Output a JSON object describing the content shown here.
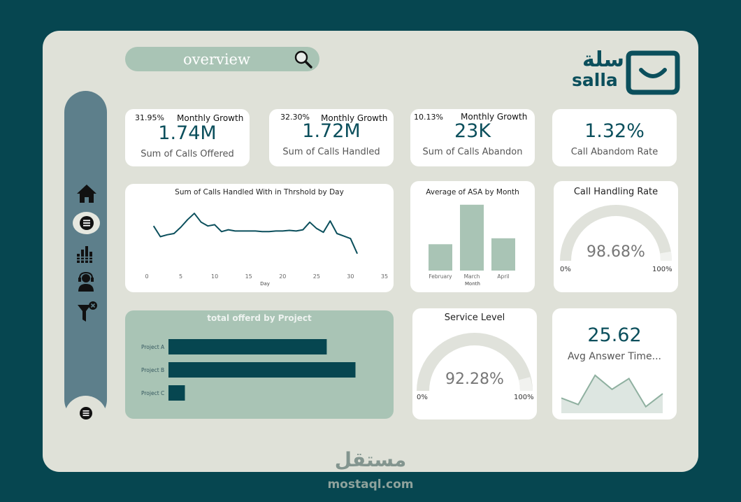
{
  "search": {
    "label": "overview",
    "icon": "search-icon"
  },
  "brand": {
    "arabic": "سلة",
    "latin": "salla",
    "color": "#0b4f5c"
  },
  "sidebar": {
    "items": [
      "home-icon",
      "list-icon",
      "bar-chart-icon",
      "agent-icon",
      "filter-clear-icon"
    ],
    "bottom": "list-icon"
  },
  "kpis": [
    {
      "growth": "31.95%",
      "growth_label": "Monthly Growth",
      "value": "1.74M",
      "label": "Sum of Calls Offered"
    },
    {
      "growth": "32.30%",
      "growth_label": "Monthly Growth",
      "value": "1.72M",
      "label": "Sum of Calls Handled"
    },
    {
      "growth": "10.13%",
      "growth_label": "Monthly Growth",
      "value": "23K",
      "label": "Sum of Calls Abandon"
    },
    {
      "value": "1.32%",
      "label": "Call Abandom Rate"
    }
  ],
  "line_chart": {
    "title": "Sum of Calls Handled With in Thrshold by Day",
    "xlabel": "Day",
    "ticks": [
      "0",
      "5",
      "10",
      "15",
      "20",
      "25",
      "30",
      "35"
    ]
  },
  "asa_chart": {
    "title": "Average of ASA by Month",
    "xlabel": "Month",
    "categories": [
      "February",
      "March",
      "April"
    ]
  },
  "handling_gauge": {
    "title": "Call Handling Rate",
    "value": "98.68%",
    "min": "0%",
    "max": "100%"
  },
  "project_chart": {
    "title": "total offerd by Project",
    "categories": [
      "Project A",
      "Project B",
      "Project C"
    ]
  },
  "service_gauge": {
    "title": "Service Level",
    "value": "92.28%",
    "min": "0%",
    "max": "100%"
  },
  "answer_time": {
    "value": "25.62",
    "label": "Avg Answer Time..."
  },
  "watermark": {
    "arabic": "مستقل",
    "latin": "mostaql.com"
  },
  "chart_data": [
    {
      "type": "line",
      "title": "Sum of Calls Handled With in Thrshold by Day",
      "xlabel": "Day",
      "ylabel": "",
      "xlim": [
        0,
        35
      ],
      "ylim": [
        0,
        100
      ],
      "x": [
        1,
        2,
        3,
        4,
        5,
        6,
        7,
        8,
        9,
        10,
        11,
        12,
        13,
        14,
        15,
        16,
        17,
        18,
        19,
        20,
        21,
        22,
        23,
        24,
        25,
        26,
        27,
        28,
        29,
        30,
        31
      ],
      "y": [
        62,
        45,
        48,
        50,
        60,
        72,
        82,
        68,
        62,
        64,
        53,
        56,
        54,
        54,
        54,
        54,
        53,
        53,
        54,
        54,
        55,
        54,
        56,
        68,
        58,
        52,
        70,
        50,
        46,
        42,
        18
      ]
    },
    {
      "type": "bar",
      "title": "Average of ASA by Month",
      "xlabel": "Month",
      "ylabel": "",
      "categories": [
        "February",
        "March",
        "April"
      ],
      "values": [
        20,
        50,
        24.5
      ],
      "ylim": [
        0,
        52
      ]
    },
    {
      "type": "bar",
      "orientation": "horizontal",
      "title": "total offerd by Project",
      "categories": [
        "Project A",
        "Project B",
        "Project C"
      ],
      "values": [
        0.77,
        0.91,
        0.08
      ],
      "xlim": [
        0,
        1
      ]
    },
    {
      "type": "area",
      "title": "Avg Answer Time",
      "x": [
        1,
        2,
        3,
        4,
        5,
        6,
        7
      ],
      "y": [
        14,
        8,
        35,
        22,
        32,
        6,
        18
      ],
      "ylim": [
        0,
        40
      ]
    }
  ]
}
